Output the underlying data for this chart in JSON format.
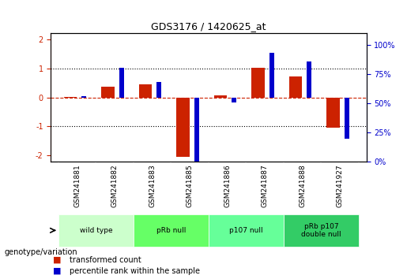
{
  "title": "GDS3176 / 1420625_at",
  "samples": [
    "GSM241881",
    "GSM241882",
    "GSM241883",
    "GSM241885",
    "GSM241886",
    "GSM241887",
    "GSM241888",
    "GSM241927"
  ],
  "transformed_count": [
    0.02,
    0.38,
    0.45,
    -2.05,
    0.08,
    1.02,
    0.72,
    -1.05
  ],
  "percentile_rank": [
    51,
    73,
    62,
    0,
    46,
    85,
    78,
    18
  ],
  "groups": [
    {
      "label": "wild type",
      "indices": [
        0,
        1
      ],
      "color": "#ccffcc"
    },
    {
      "label": "pRb null",
      "indices": [
        2,
        3
      ],
      "color": "#66ff66"
    },
    {
      "label": "p107 null",
      "indices": [
        4,
        5
      ],
      "color": "#66ff99"
    },
    {
      "label": "pRb p107\ndouble null",
      "indices": [
        6,
        7
      ],
      "color": "#33cc66"
    }
  ],
  "ylim_left": [
    -2.2,
    2.2
  ],
  "ylim_right": [
    0,
    110
  ],
  "yticks_left": [
    -2,
    -1,
    0,
    1,
    2
  ],
  "yticks_right": [
    0,
    25,
    50,
    75,
    100
  ],
  "bar_color_red": "#cc2200",
  "bar_color_blue": "#0000cc",
  "hline_red": 0,
  "dotted_lines": [
    -1,
    1
  ],
  "legend_red": "transformed count",
  "legend_blue": "percentile rank within the sample",
  "group_label": "genotype/variation",
  "background_plot": "#ffffff",
  "background_group": "#c8c8c8"
}
